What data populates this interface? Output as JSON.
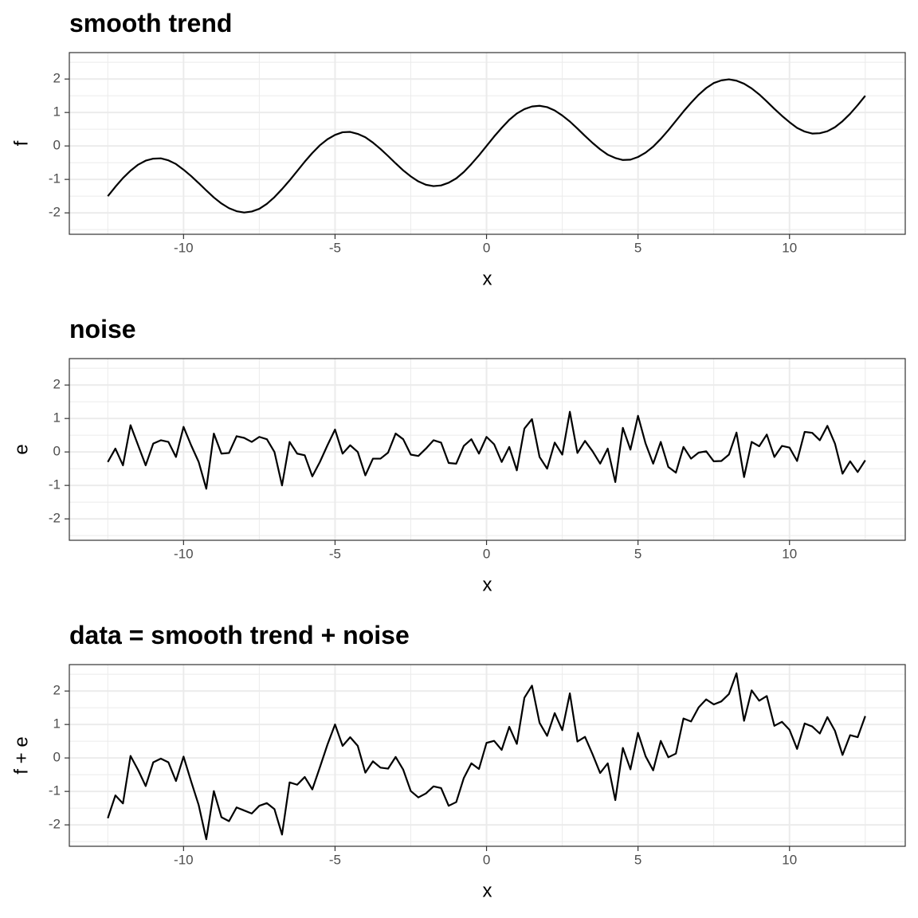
{
  "chart_data": [
    {
      "type": "line",
      "title": "smooth trend",
      "x_label": "x",
      "y_label": "f",
      "x": [
        -12.5,
        -12.25,
        -12,
        -11.75,
        -11.5,
        -11.25,
        -11,
        -10.75,
        -10.5,
        -10.25,
        -10,
        -9.75,
        -9.5,
        -9.25,
        -9,
        -8.75,
        -8.5,
        -8.25,
        -8,
        -7.75,
        -7.5,
        -7.25,
        -7,
        -6.75,
        -6.5,
        -6.25,
        -6,
        -5.75,
        -5.5,
        -5.25,
        -5,
        -4.75,
        -4.5,
        -4.25,
        -4,
        -3.75,
        -3.5,
        -3.25,
        -3,
        -2.75,
        -2.5,
        -2.25,
        -2,
        -1.75,
        -1.5,
        -1.25,
        -1,
        -0.75,
        -0.5,
        -0.25,
        0,
        0.25,
        0.5,
        0.75,
        1,
        1.25,
        1.5,
        1.75,
        2,
        2.25,
        2.5,
        2.75,
        3,
        3.25,
        3.5,
        3.75,
        4,
        4.25,
        4.5,
        4.75,
        5,
        5.25,
        5.5,
        5.75,
        6,
        6.25,
        6.5,
        6.75,
        7,
        7.25,
        7.5,
        7.75,
        8,
        8.25,
        8.5,
        8.75,
        9,
        9.25,
        9.5,
        9.75,
        10,
        10.25,
        10.5,
        10.75,
        11,
        11.25,
        11.5,
        11.75,
        12,
        12.25,
        12.5
      ],
      "series": [
        {
          "color": "#000000",
          "values": [
            -1.5,
            -1.22,
            -0.96,
            -0.74,
            -0.56,
            -0.44,
            -0.38,
            -0.37,
            -0.43,
            -0.54,
            -0.71,
            -0.9,
            -1.11,
            -1.33,
            -1.54,
            -1.72,
            -1.86,
            -1.95,
            -1.99,
            -1.96,
            -1.88,
            -1.73,
            -1.53,
            -1.29,
            -1.03,
            -0.75,
            -0.47,
            -0.21,
            0.02,
            0.2,
            0.33,
            0.41,
            0.42,
            0.36,
            0.26,
            0.1,
            -0.09,
            -0.3,
            -0.52,
            -0.73,
            -0.91,
            -1.06,
            -1.16,
            -1.2,
            -1.18,
            -1.1,
            -0.97,
            -0.78,
            -0.54,
            -0.28,
            0,
            0.28,
            0.54,
            0.78,
            0.97,
            1.1,
            1.18,
            1.2,
            1.16,
            1.06,
            0.91,
            0.73,
            0.52,
            0.3,
            0.09,
            -0.1,
            -0.26,
            -0.36,
            -0.42,
            -0.41,
            -0.33,
            -0.2,
            -0.02,
            0.21,
            0.47,
            0.75,
            1.03,
            1.29,
            1.53,
            1.73,
            1.88,
            1.96,
            1.99,
            1.95,
            1.86,
            1.72,
            1.54,
            1.33,
            1.11,
            0.9,
            0.71,
            0.54,
            0.43,
            0.37,
            0.38,
            0.44,
            0.56,
            0.74,
            0.96,
            1.22,
            1.5
          ]
        }
      ],
      "xlim": [
        -13.77,
        13.82
      ],
      "ylim": [
        -2.64,
        2.79
      ],
      "xticks": [
        -10,
        -5,
        0,
        5,
        10
      ],
      "yticks": [
        -2,
        -1,
        0,
        1,
        2
      ],
      "xminor": [
        -12.5,
        -7.5,
        -2.5,
        2.5,
        7.5,
        12.5
      ],
      "yminor": [
        -2.5,
        -1.5,
        -0.5,
        0.5,
        1.5,
        2.5
      ],
      "grid": true
    },
    {
      "type": "line",
      "title": "noise",
      "x_label": "x",
      "y_label": "e",
      "x": [
        -12.5,
        -12.25,
        -12,
        -11.75,
        -11.5,
        -11.25,
        -11,
        -10.75,
        -10.5,
        -10.25,
        -10,
        -9.75,
        -9.5,
        -9.25,
        -9,
        -8.75,
        -8.5,
        -8.25,
        -8,
        -7.75,
        -7.5,
        -7.25,
        -7,
        -6.75,
        -6.5,
        -6.25,
        -6,
        -5.75,
        -5.5,
        -5.25,
        -5,
        -4.75,
        -4.5,
        -4.25,
        -4,
        -3.75,
        -3.5,
        -3.25,
        -3,
        -2.75,
        -2.5,
        -2.25,
        -2,
        -1.75,
        -1.5,
        -1.25,
        -1,
        -0.75,
        -0.5,
        -0.25,
        0,
        0.25,
        0.5,
        0.75,
        1,
        1.25,
        1.5,
        1.75,
        2,
        2.25,
        2.5,
        2.75,
        3,
        3.25,
        3.5,
        3.75,
        4,
        4.25,
        4.5,
        4.75,
        5,
        5.25,
        5.5,
        5.75,
        6,
        6.25,
        6.5,
        6.75,
        7,
        7.25,
        7.5,
        7.75,
        8,
        8.25,
        8.5,
        8.75,
        9,
        9.25,
        9.5,
        9.75,
        10,
        10.25,
        10.5,
        10.75,
        11,
        11.25,
        11.5,
        11.75,
        12,
        12.25,
        12.5
      ],
      "series": [
        {
          "color": "#000000",
          "values": [
            -0.3,
            0.1,
            -0.4,
            0.8,
            0.2,
            -0.4,
            0.25,
            0.35,
            0.3,
            -0.15,
            0.75,
            0.2,
            -0.3,
            -1.1,
            0.55,
            -0.05,
            -0.03,
            0.47,
            0.42,
            0.3,
            0.45,
            0.38,
            0.0,
            -1.0,
            0.3,
            -0.05,
            -0.1,
            -0.73,
            -0.3,
            0.2,
            0.67,
            -0.05,
            0.2,
            0.0,
            -0.7,
            -0.2,
            -0.2,
            -0.02,
            0.55,
            0.38,
            -0.08,
            -0.12,
            0.1,
            0.35,
            0.28,
            -0.33,
            -0.35,
            0.18,
            0.38,
            -0.05,
            0.45,
            0.23,
            -0.3,
            0.15,
            -0.55,
            0.7,
            0.98,
            -0.15,
            -0.5,
            0.28,
            -0.08,
            1.2,
            -0.03,
            0.33,
            0.02,
            -0.35,
            0.1,
            -0.9,
            0.72,
            0.07,
            1.08,
            0.25,
            -0.35,
            0.3,
            -0.45,
            -0.62,
            0.15,
            -0.2,
            -0.02,
            0.02,
            -0.28,
            -0.27,
            -0.08,
            0.58,
            -0.75,
            0.3,
            0.17,
            0.52,
            -0.15,
            0.18,
            0.13,
            -0.27,
            0.6,
            0.57,
            0.35,
            0.78,
            0.25,
            -0.65,
            -0.28,
            -0.6,
            -0.25
          ]
        }
      ],
      "xlim": [
        -13.77,
        13.82
      ],
      "ylim": [
        -2.64,
        2.79
      ],
      "xticks": [
        -10,
        -5,
        0,
        5,
        10
      ],
      "yticks": [
        -2,
        -1,
        0,
        1,
        2
      ],
      "xminor": [
        -12.5,
        -7.5,
        -2.5,
        2.5,
        7.5,
        12.5
      ],
      "yminor": [
        -2.5,
        -1.5,
        -0.5,
        0.5,
        1.5,
        2.5
      ],
      "grid": true
    },
    {
      "type": "line",
      "title": "data = smooth trend + noise",
      "x_label": "x",
      "y_label": "f + e",
      "x": [
        -12.5,
        -12.25,
        -12,
        -11.75,
        -11.5,
        -11.25,
        -11,
        -10.75,
        -10.5,
        -10.25,
        -10,
        -9.75,
        -9.5,
        -9.25,
        -9,
        -8.75,
        -8.5,
        -8.25,
        -8,
        -7.75,
        -7.5,
        -7.25,
        -7,
        -6.75,
        -6.5,
        -6.25,
        -6,
        -5.75,
        -5.5,
        -5.25,
        -5,
        -4.75,
        -4.5,
        -4.25,
        -4,
        -3.75,
        -3.5,
        -3.25,
        -3,
        -2.75,
        -2.5,
        -2.25,
        -2,
        -1.75,
        -1.5,
        -1.25,
        -1,
        -0.75,
        -0.5,
        -0.25,
        0,
        0.25,
        0.5,
        0.75,
        1,
        1.25,
        1.5,
        1.75,
        2,
        2.25,
        2.5,
        2.75,
        3,
        3.25,
        3.5,
        3.75,
        4,
        4.25,
        4.5,
        4.75,
        5,
        5.25,
        5.5,
        5.75,
        6,
        6.25,
        6.5,
        6.75,
        7,
        7.25,
        7.5,
        7.75,
        8,
        8.25,
        8.5,
        8.75,
        9,
        9.25,
        9.5,
        9.75,
        10,
        10.25,
        10.5,
        10.75,
        11,
        11.25,
        11.5,
        11.75,
        12,
        12.25,
        12.5
      ],
      "series": [
        {
          "color": "#000000",
          "values": [
            -1.8,
            -1.12,
            -1.36,
            0.06,
            -0.36,
            -0.84,
            -0.13,
            -0.02,
            -0.13,
            -0.69,
            0.04,
            -0.7,
            -1.41,
            -2.43,
            -0.99,
            -1.77,
            -1.89,
            -1.48,
            -1.57,
            -1.66,
            -1.43,
            -1.35,
            -1.53,
            -2.29,
            -0.73,
            -0.8,
            -0.57,
            -0.94,
            -0.28,
            0.4,
            1.0,
            0.36,
            0.62,
            0.36,
            -0.44,
            -0.1,
            -0.29,
            -0.32,
            0.03,
            -0.35,
            -0.99,
            -1.18,
            -1.06,
            -0.85,
            -0.9,
            -1.43,
            -1.32,
            -0.6,
            -0.16,
            -0.33,
            0.45,
            0.51,
            0.24,
            0.93,
            0.42,
            1.8,
            2.16,
            1.05,
            0.66,
            1.34,
            0.83,
            1.93,
            0.49,
            0.63,
            0.11,
            -0.45,
            -0.16,
            -1.26,
            0.3,
            -0.34,
            0.75,
            0.05,
            -0.37,
            0.51,
            0.02,
            0.13,
            1.18,
            1.09,
            1.51,
            1.75,
            1.6,
            1.69,
            1.91,
            2.53,
            1.11,
            2.02,
            1.71,
            1.85,
            0.96,
            1.08,
            0.84,
            0.27,
            1.03,
            0.94,
            0.73,
            1.22,
            0.81,
            0.09,
            0.68,
            0.62,
            1.25
          ]
        }
      ],
      "xlim": [
        -13.77,
        13.82
      ],
      "ylim": [
        -2.64,
        2.79
      ],
      "xticks": [
        -10,
        -5,
        0,
        5,
        10
      ],
      "yticks": [
        -2,
        -1,
        0,
        1,
        2
      ],
      "xminor": [
        -12.5,
        -7.5,
        -2.5,
        2.5,
        7.5,
        12.5
      ],
      "yminor": [
        -2.5,
        -1.5,
        -0.5,
        0.5,
        1.5,
        2.5
      ],
      "grid": true
    }
  ]
}
